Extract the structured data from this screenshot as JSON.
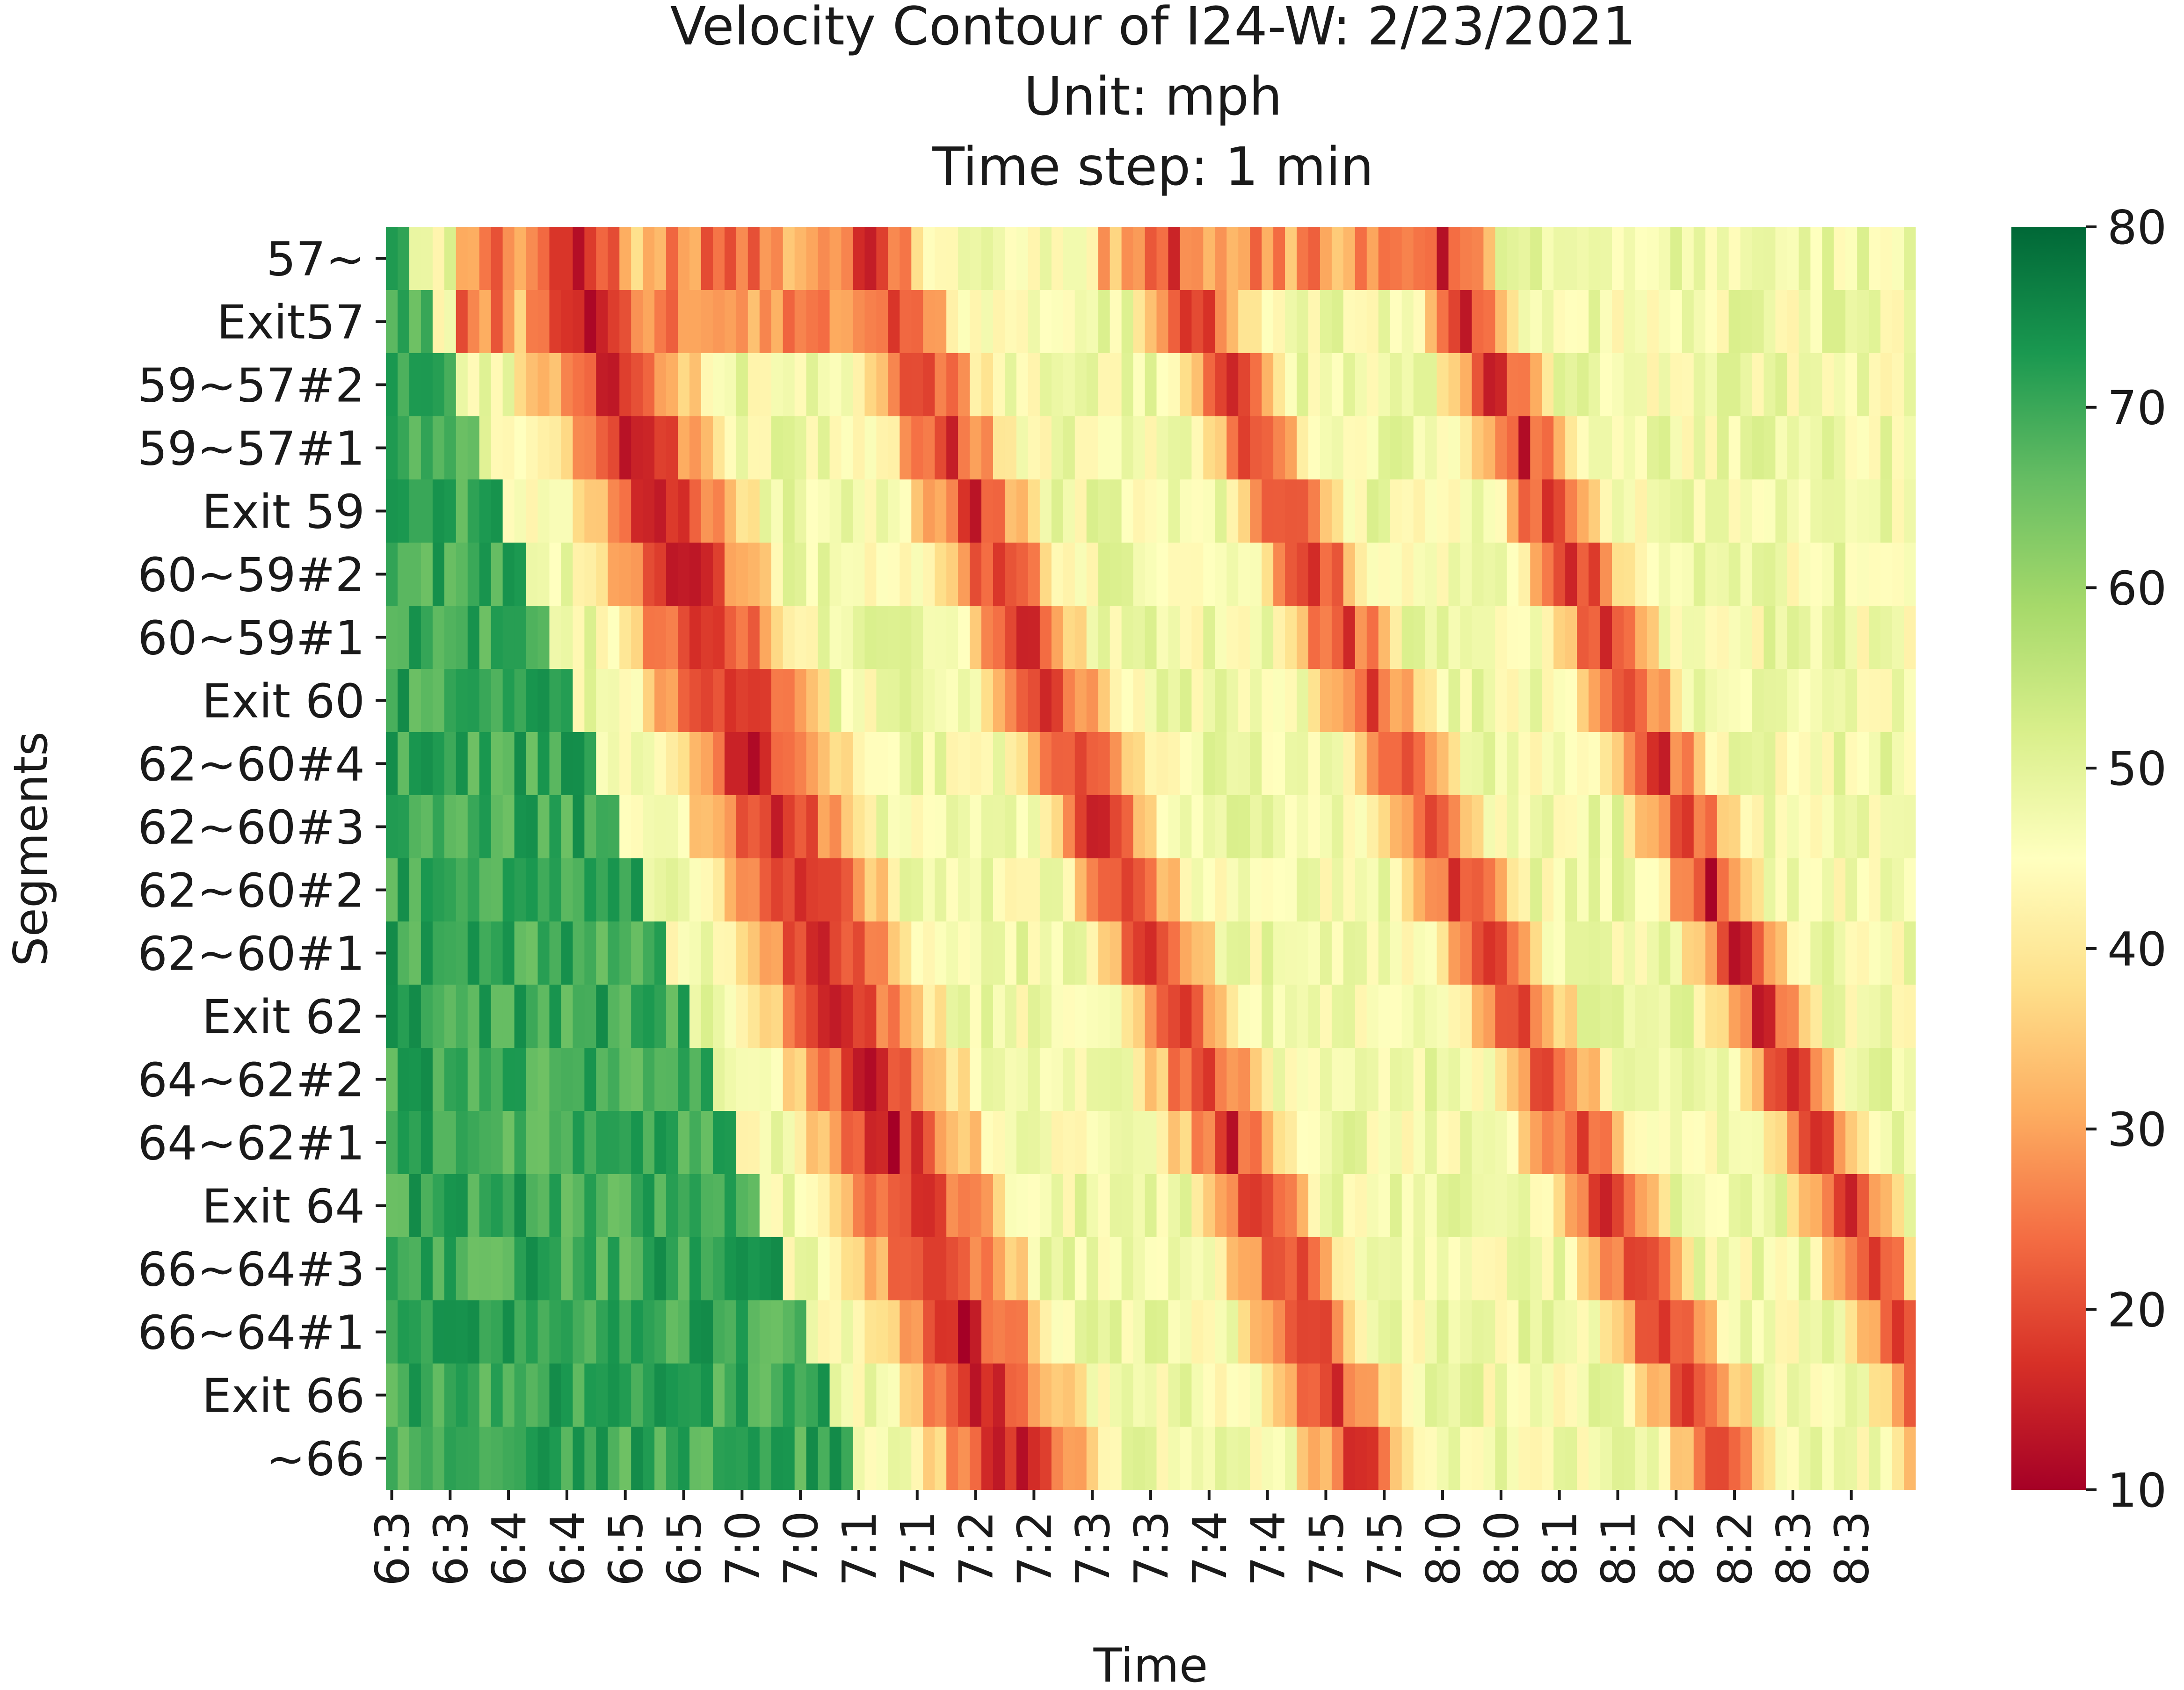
{
  "chart_data": {
    "type": "heatmap",
    "title": [
      "Velocity Contour of I24-W: 2/23/2021",
      "Unit: mph",
      "Time step: 1 min"
    ],
    "xlabel": "Time",
    "ylabel": "Segments",
    "y_categories": [
      "57~",
      "Exit57",
      "59~57#2",
      "59~57#1",
      "Exit 59",
      "60~59#2",
      "60~59#1",
      "Exit 60",
      "62~60#4",
      "62~60#3",
      "62~60#2",
      "62~60#1",
      "Exit 62",
      "64~62#2",
      "64~62#1",
      "Exit 64",
      "66~64#3",
      "66~64#1",
      "Exit 66",
      "~66"
    ],
    "x_tick_labels": [
      "6:3",
      "6:3",
      "6:4",
      "6:4",
      "6:5",
      "6:5",
      "7:0",
      "7:0",
      "7:1",
      "7:1",
      "7:2",
      "7:2",
      "7:3",
      "7:3",
      "7:4",
      "7:4",
      "7:5",
      "7:5",
      "8:0",
      "8:0",
      "8:1",
      "8:1",
      "8:2",
      "8:2",
      "8:3",
      "8:3"
    ],
    "x_tick_step_minutes": 5,
    "n_time_steps": 131,
    "value_range": [
      10,
      80
    ],
    "colorbar_ticks": [
      10,
      20,
      30,
      40,
      50,
      60,
      70,
      80
    ],
    "colormap": "RdYlGn",
    "colormap_stops": [
      "#a50026",
      "#d73027",
      "#f46d43",
      "#fdae61",
      "#fee08b",
      "#ffffbf",
      "#d9ef8b",
      "#a6d96a",
      "#66bd63",
      "#1a9850",
      "#006837"
    ],
    "wave_bands": [
      {
        "start_minute_row0": 8,
        "slope_minutes_per_row": 2.0,
        "width_minutes": 14,
        "min_speed": 14
      },
      {
        "start_minute_row0": 37,
        "slope_minutes_per_row": 2.2,
        "width_minutes": 8,
        "min_speed": 16
      },
      {
        "start_minute_row0": 63,
        "slope_minutes_per_row": 2.5,
        "width_minutes": 7,
        "min_speed": 17
      },
      {
        "start_minute_row0": 87,
        "slope_minutes_per_row": 2.3,
        "width_minutes": 6,
        "min_speed": 15
      }
    ],
    "free_flow_speed_early": 70,
    "free_flow_speed_late": 55
  }
}
